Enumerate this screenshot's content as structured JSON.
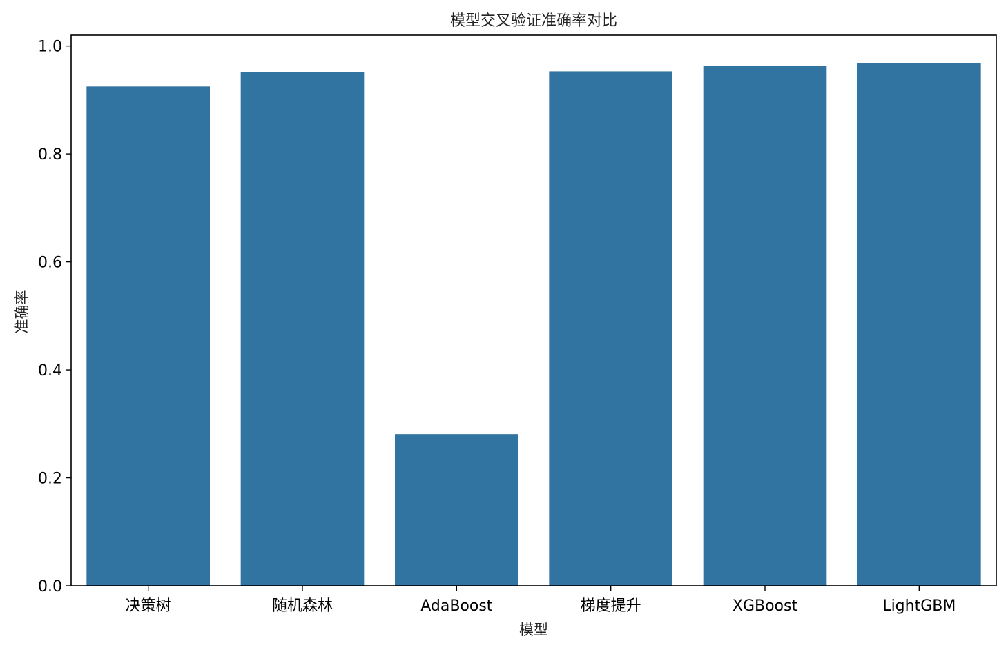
{
  "chart_data": {
    "type": "bar",
    "title": "模型交叉验证准确率对比",
    "xlabel": "模型",
    "ylabel": "准确率",
    "categories": [
      "决策树",
      "随机森林",
      "AdaBoost",
      "梯度提升",
      "XGBoost",
      "LightGBM"
    ],
    "values": [
      0.925,
      0.951,
      0.281,
      0.953,
      0.963,
      0.968
    ],
    "ylim": [
      0,
      1.02
    ],
    "yticks": [
      "0.0",
      "0.2",
      "0.4",
      "0.6",
      "0.8",
      "1.0"
    ],
    "bar_color": "#3274a1",
    "grid": false
  }
}
